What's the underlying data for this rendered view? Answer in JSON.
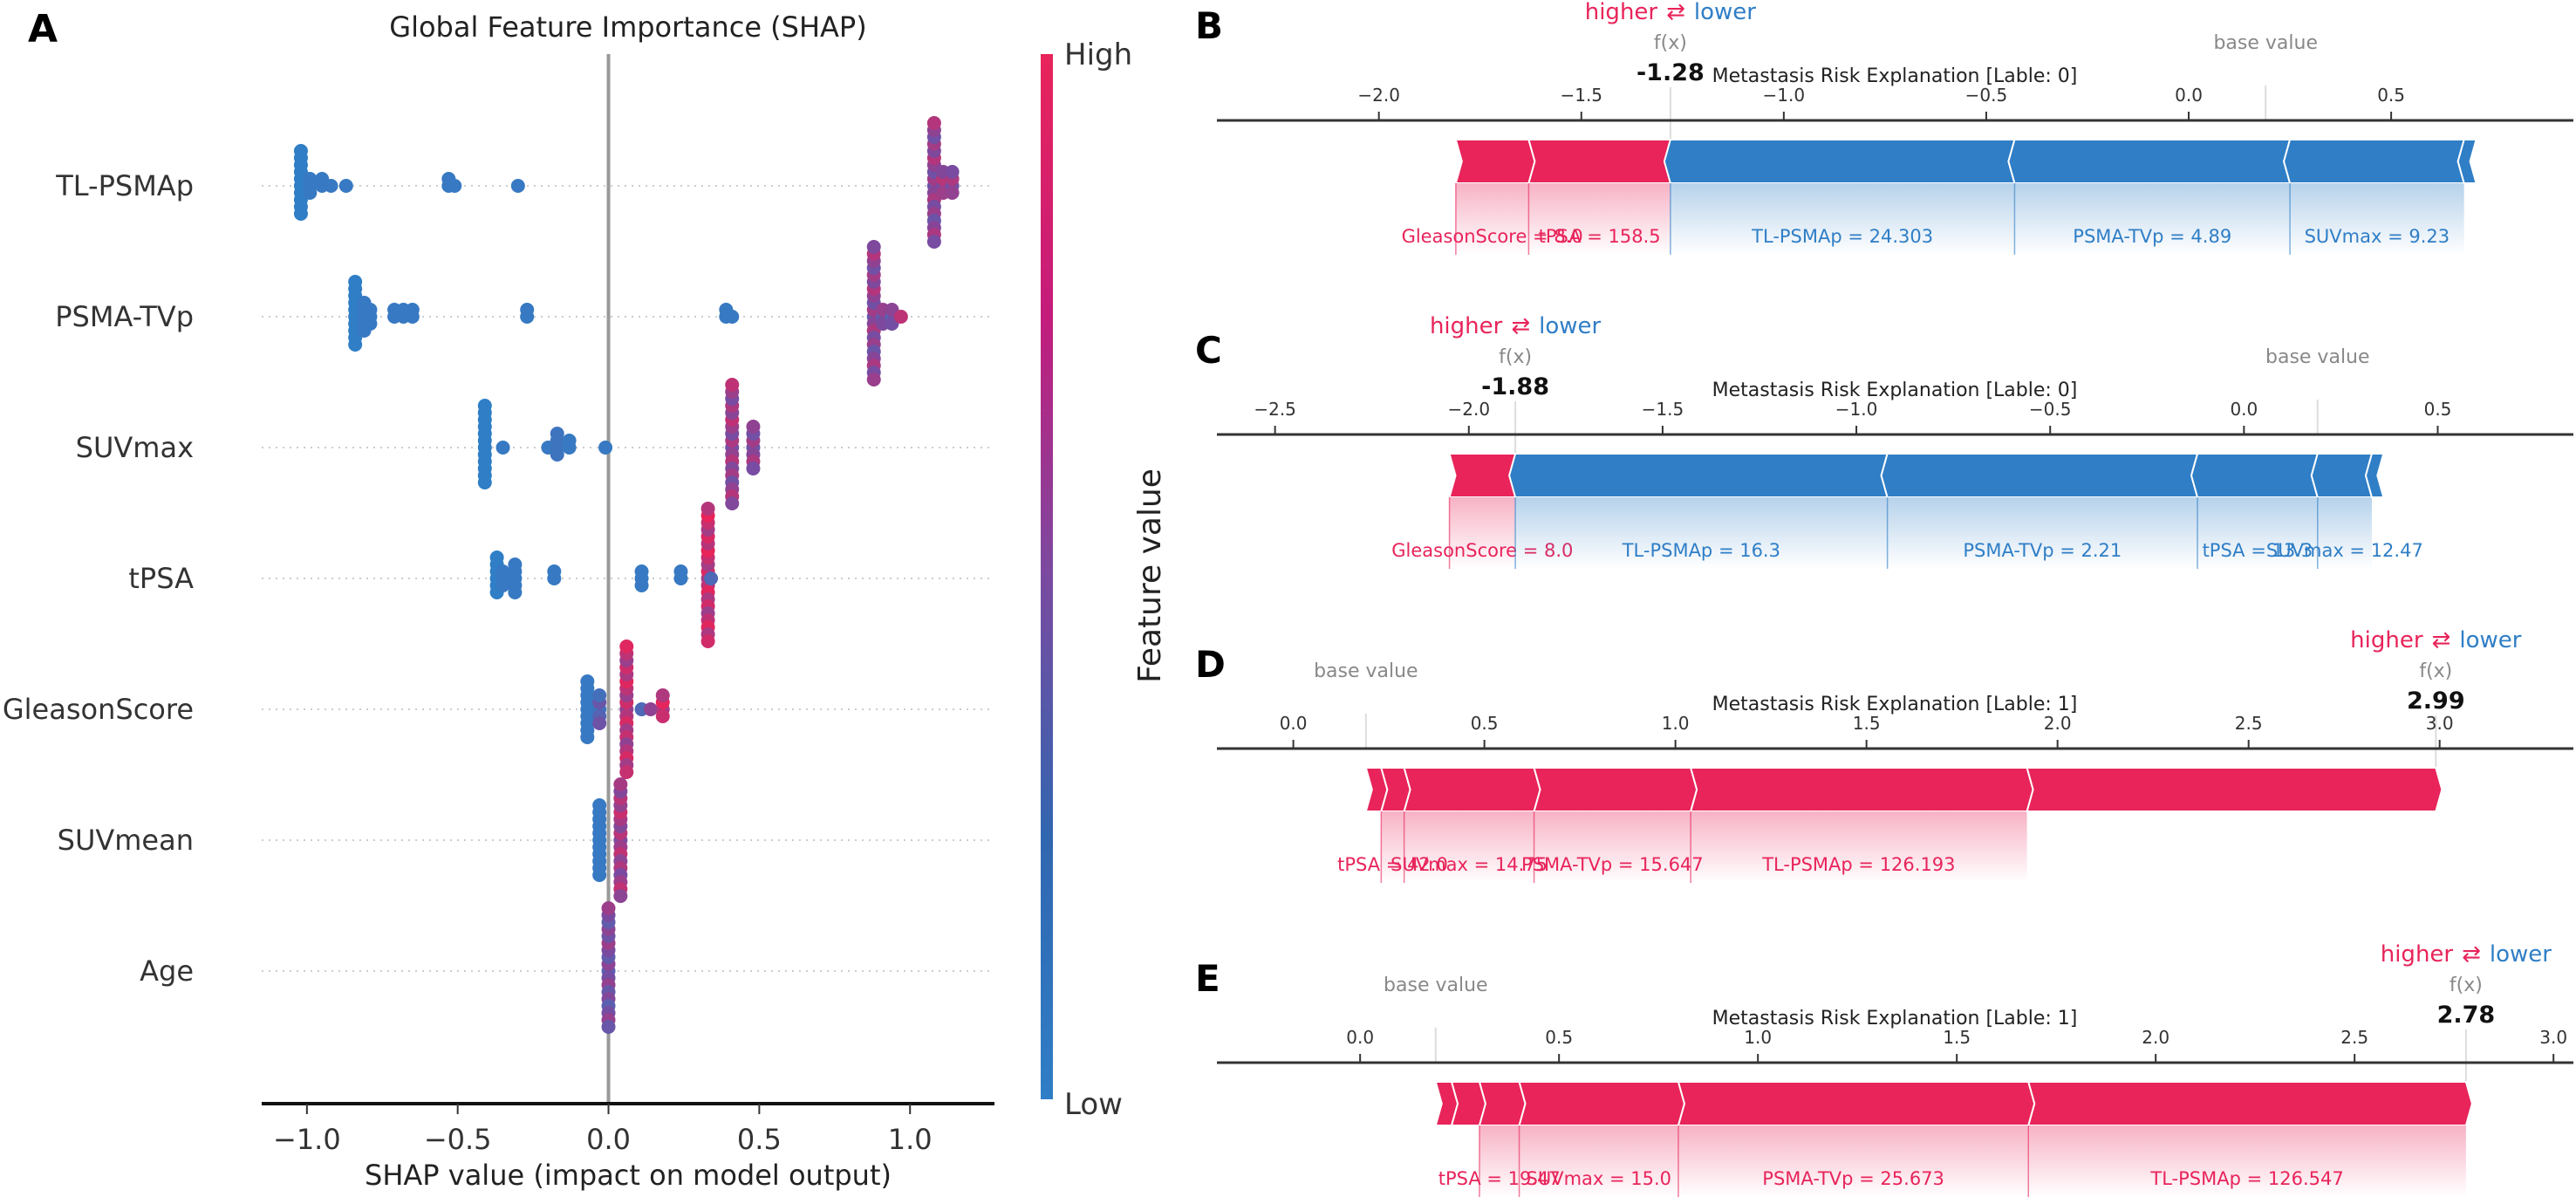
{
  "colors": {
    "positive": "#e8245a",
    "negative": "#2f7ec6",
    "axis": "#333333",
    "base_value_text": "#888888",
    "zero_line": "#999999"
  },
  "chart_data": [
    {
      "panel": "A",
      "type": "scatter",
      "subtype": "beeswarm",
      "title": "Global Feature Importance (SHAP)",
      "xlabel": "SHAP value (impact on model output)",
      "ylabel": "",
      "xlim": [
        -1.15,
        1.28
      ],
      "xticks": [
        -1.0,
        -0.5,
        0.0,
        0.5,
        1.0
      ],
      "xtick_labels": [
        "−1.0",
        "−0.5",
        "0.0",
        "0.5",
        "1.0"
      ],
      "grid": false,
      "colorbar": {
        "label": "Feature value",
        "high_label": "High",
        "low_label": "Low",
        "position": "right"
      },
      "features": [
        {
          "name": "TL-PSMAp",
          "points": [
            {
              "x": -1.02,
              "v": 0.0,
              "n": 10
            },
            {
              "x": -0.99,
              "v": 0.05,
              "n": 3
            },
            {
              "x": -0.95,
              "v": 0.05,
              "n": 2
            },
            {
              "x": -0.92,
              "v": 0.05,
              "n": 1
            },
            {
              "x": -0.87,
              "v": 0.05,
              "n": 1
            },
            {
              "x": -0.53,
              "v": 0.05,
              "n": 2
            },
            {
              "x": -0.51,
              "v": 0.05,
              "n": 1
            },
            {
              "x": -0.3,
              "v": 0.05,
              "n": 1
            },
            {
              "x": 1.08,
              "v": 0.6,
              "n": 18
            },
            {
              "x": 1.11,
              "v": 0.7,
              "n": 4
            },
            {
              "x": 1.14,
              "v": 0.65,
              "n": 4
            }
          ]
        },
        {
          "name": "PSMA-TVp",
          "points": [
            {
              "x": -0.84,
              "v": 0.0,
              "n": 10
            },
            {
              "x": -0.81,
              "v": 0.05,
              "n": 5
            },
            {
              "x": -0.79,
              "v": 0.05,
              "n": 3
            },
            {
              "x": -0.71,
              "v": 0.05,
              "n": 2
            },
            {
              "x": -0.68,
              "v": 0.05,
              "n": 2
            },
            {
              "x": -0.65,
              "v": 0.05,
              "n": 2
            },
            {
              "x": -0.27,
              "v": 0.05,
              "n": 2
            },
            {
              "x": 0.39,
              "v": 0.05,
              "n": 2
            },
            {
              "x": 0.41,
              "v": 0.05,
              "n": 1
            },
            {
              "x": 0.88,
              "v": 0.6,
              "n": 20
            },
            {
              "x": 0.91,
              "v": 0.55,
              "n": 3
            },
            {
              "x": 0.94,
              "v": 0.5,
              "n": 3
            },
            {
              "x": 0.97,
              "v": 1.0,
              "n": 1
            }
          ]
        },
        {
          "name": "SUVmax",
          "points": [
            {
              "x": -0.41,
              "v": 0.0,
              "n": 12
            },
            {
              "x": -0.35,
              "v": 0.05,
              "n": 1
            },
            {
              "x": -0.2,
              "v": 0.05,
              "n": 1
            },
            {
              "x": -0.17,
              "v": 0.1,
              "n": 4
            },
            {
              "x": -0.13,
              "v": 0.05,
              "n": 2
            },
            {
              "x": -0.01,
              "v": 0.05,
              "n": 1
            },
            {
              "x": 0.41,
              "v": 0.65,
              "n": 18
            },
            {
              "x": 0.48,
              "v": 0.6,
              "n": 7
            }
          ]
        },
        {
          "name": "tPSA",
          "points": [
            {
              "x": -0.37,
              "v": 0.0,
              "n": 6
            },
            {
              "x": -0.35,
              "v": 0.05,
              "n": 3
            },
            {
              "x": -0.31,
              "v": 0.05,
              "n": 5
            },
            {
              "x": -0.18,
              "v": 0.05,
              "n": 2
            },
            {
              "x": 0.11,
              "v": 0.05,
              "n": 3
            },
            {
              "x": 0.24,
              "v": 0.05,
              "n": 2
            },
            {
              "x": 0.33,
              "v": 0.85,
              "n": 20
            },
            {
              "x": 0.34,
              "v": 0.4,
              "n": 1
            }
          ]
        },
        {
          "name": "GleasonScore",
          "points": [
            {
              "x": -0.07,
              "v": 0.05,
              "n": 9
            },
            {
              "x": -0.03,
              "v": 0.3,
              "n": 5
            },
            {
              "x": 0.06,
              "v": 0.8,
              "n": 19
            },
            {
              "x": 0.11,
              "v": 0.4,
              "n": 1
            },
            {
              "x": 0.14,
              "v": 0.8,
              "n": 1
            },
            {
              "x": 0.18,
              "v": 0.9,
              "n": 4
            }
          ]
        },
        {
          "name": "SUVmean",
          "points": [
            {
              "x": -0.03,
              "v": 0.05,
              "n": 11
            },
            {
              "x": 0.04,
              "v": 0.7,
              "n": 17
            }
          ]
        },
        {
          "name": "Age",
          "points": [
            {
              "x": 0.0,
              "v": 0.5,
              "n": 18
            }
          ]
        }
      ]
    },
    {
      "panel": "B",
      "type": "bar",
      "subtype": "force_plot",
      "title": "Metastasis Risk Explanation [Lable: 0]",
      "legend": {
        "higher": "higher",
        "lower": "lower",
        "arrows": "⇄"
      },
      "fx_label": "f(x)",
      "fx_value": -1.28,
      "fx_display": "-1.28",
      "base_value_label": "base value",
      "base_value": 0.19,
      "xlim": [
        -2.4,
        0.95
      ],
      "xticks": [
        -2.0,
        -1.5,
        -1.0,
        -0.5,
        0.0,
        0.5
      ],
      "xtick_labels": [
        "−2.0",
        "−1.5",
        "−1.0",
        "−0.5",
        "0.0",
        "0.5"
      ],
      "positive_segments": [
        {
          "start": -1.81,
          "end": -1.63,
          "label": "GleasonScore = 8.0"
        },
        {
          "start": -1.63,
          "end": -1.28,
          "label": "tPSA = 158.5"
        }
      ],
      "negative_segments": [
        {
          "start": -1.28,
          "end": -0.43,
          "label": "TL-PSMAp = 24.303"
        },
        {
          "start": -0.43,
          "end": 0.25,
          "label": "PSMA-TVp = 4.89"
        },
        {
          "start": 0.25,
          "end": 0.68,
          "label": "SUVmax = 9.23"
        },
        {
          "start": 0.68,
          "end": 0.71,
          "label": ""
        }
      ]
    },
    {
      "panel": "C",
      "type": "bar",
      "subtype": "force_plot",
      "title": "Metastasis Risk Explanation [Lable: 0]",
      "legend": {
        "higher": "higher",
        "lower": "lower",
        "arrows": "⇄"
      },
      "fx_label": "f(x)",
      "fx_value": -1.88,
      "fx_display": "-1.88",
      "base_value_label": "base value",
      "base_value": 0.19,
      "xlim": [
        -2.65,
        0.85
      ],
      "xticks": [
        -2.5,
        -2.0,
        -1.5,
        -1.0,
        -0.5,
        0.0,
        0.5
      ],
      "xtick_labels": [
        "−2.5",
        "−2.0",
        "−1.5",
        "−1.0",
        "−0.5",
        "0.0",
        "0.5"
      ],
      "positive_segments": [
        {
          "start": -2.05,
          "end": -1.88,
          "label": "GleasonScore = 8.0"
        }
      ],
      "negative_segments": [
        {
          "start": -1.88,
          "end": -0.92,
          "label": "TL-PSMAp = 16.3"
        },
        {
          "start": -0.92,
          "end": -0.12,
          "label": "PSMA-TVp = 2.21"
        },
        {
          "start": -0.12,
          "end": 0.19,
          "label": "tPSA = 13.3"
        },
        {
          "start": 0.19,
          "end": 0.33,
          "label": "SUVmax = 12.47"
        },
        {
          "start": 0.33,
          "end": 0.36,
          "label": ""
        }
      ]
    },
    {
      "panel": "D",
      "type": "bar",
      "subtype": "force_plot",
      "title": "Metastasis Risk Explanation [Lable: 1]",
      "legend": {
        "higher": "higher",
        "lower": "lower",
        "arrows": "⇄"
      },
      "fx_label": "f(x)",
      "fx_value": 2.99,
      "fx_display": "2.99",
      "base_value_label": "base value",
      "base_value": 0.19,
      "xlim": [
        -0.2,
        3.35
      ],
      "xticks": [
        0.0,
        0.5,
        1.0,
        1.5,
        2.0,
        2.5,
        3.0
      ],
      "xtick_labels": [
        "0.0",
        "0.5",
        "1.0",
        "1.5",
        "2.0",
        "2.5",
        "3.0"
      ],
      "positive_segments": [
        {
          "start": 0.19,
          "end": 0.23,
          "label": ""
        },
        {
          "start": 0.23,
          "end": 0.29,
          "label": "tPSA = 42.0"
        },
        {
          "start": 0.29,
          "end": 0.63,
          "label": "SUVmax = 14.75"
        },
        {
          "start": 0.63,
          "end": 1.04,
          "label": "PSMA-TVp = 15.647"
        },
        {
          "start": 1.04,
          "end": 1.92,
          "label": "TL-PSMAp = 126.193"
        },
        {
          "start": 1.92,
          "end": 2.99,
          "label": ""
        }
      ],
      "negative_segments": []
    },
    {
      "panel": "E",
      "type": "bar",
      "subtype": "force_plot",
      "title": "Metastasis Risk Explanation [Lable: 1]",
      "legend": {
        "higher": "higher",
        "lower": "lower",
        "arrows": "⇄"
      },
      "fx_label": "f(x)",
      "fx_value": 2.78,
      "fx_display": "2.78",
      "base_value_label": "base value",
      "base_value": 0.19,
      "xlim": [
        -0.36,
        3.05
      ],
      "xticks": [
        0.0,
        0.5,
        1.0,
        1.5,
        2.0,
        2.5,
        3.0
      ],
      "xtick_labels": [
        "0.0",
        "0.5",
        "1.0",
        "1.5",
        "2.0",
        "2.5",
        "3.0"
      ],
      "positive_segments": [
        {
          "start": 0.19,
          "end": 0.23,
          "label": ""
        },
        {
          "start": 0.23,
          "end": 0.3,
          "label": ""
        },
        {
          "start": 0.3,
          "end": 0.4,
          "label": "tPSA = 19.47"
        },
        {
          "start": 0.4,
          "end": 0.8,
          "label": "SUVmax = 15.0"
        },
        {
          "start": 0.8,
          "end": 1.68,
          "label": "PSMA-TVp = 25.673"
        },
        {
          "start": 1.68,
          "end": 2.78,
          "label": "TL-PSMAp = 126.547"
        }
      ],
      "negative_segments": []
    }
  ]
}
